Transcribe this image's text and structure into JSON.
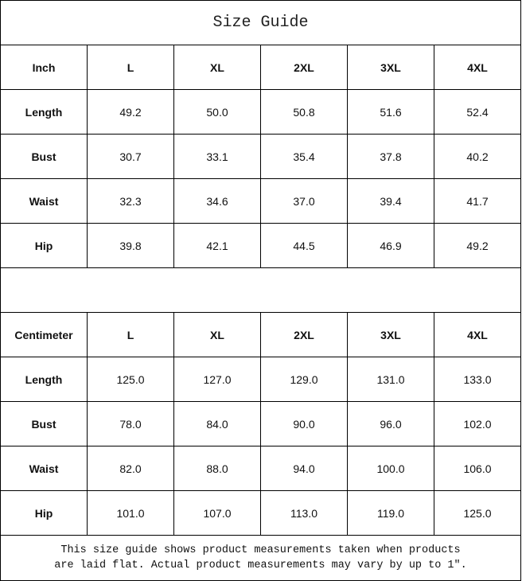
{
  "title": "Size Guide",
  "inch_table": {
    "headers": [
      "Inch",
      "L",
      "XL",
      "2XL",
      "3XL",
      "4XL"
    ],
    "rows": [
      {
        "label": "Length",
        "values": [
          "49.2",
          "50.0",
          "50.8",
          "51.6",
          "52.4"
        ]
      },
      {
        "label": "Bust",
        "values": [
          "30.7",
          "33.1",
          "35.4",
          "37.8",
          "40.2"
        ]
      },
      {
        "label": "Waist",
        "values": [
          "32.3",
          "34.6",
          "37.0",
          "39.4",
          "41.7"
        ]
      },
      {
        "label": "Hip",
        "values": [
          "39.8",
          "42.1",
          "44.5",
          "46.9",
          "49.2"
        ]
      }
    ]
  },
  "cm_table": {
    "headers": [
      "Centimeter",
      "L",
      "XL",
      "2XL",
      "3XL",
      "4XL"
    ],
    "rows": [
      {
        "label": "Length",
        "values": [
          "125.0",
          "127.0",
          "129.0",
          "131.0",
          "133.0"
        ]
      },
      {
        "label": "Bust",
        "values": [
          "78.0",
          "84.0",
          "90.0",
          "96.0",
          "102.0"
        ]
      },
      {
        "label": "Waist",
        "values": [
          "82.0",
          "88.0",
          "94.0",
          "100.0",
          "106.0"
        ]
      },
      {
        "label": "Hip",
        "values": [
          "101.0",
          "107.0",
          "113.0",
          "119.0",
          "125.0"
        ]
      }
    ]
  },
  "note": {
    "line1": "This size guide shows product measurements taken when products",
    "line2": "are laid flat. Actual product measurements may vary by up to 1″."
  }
}
